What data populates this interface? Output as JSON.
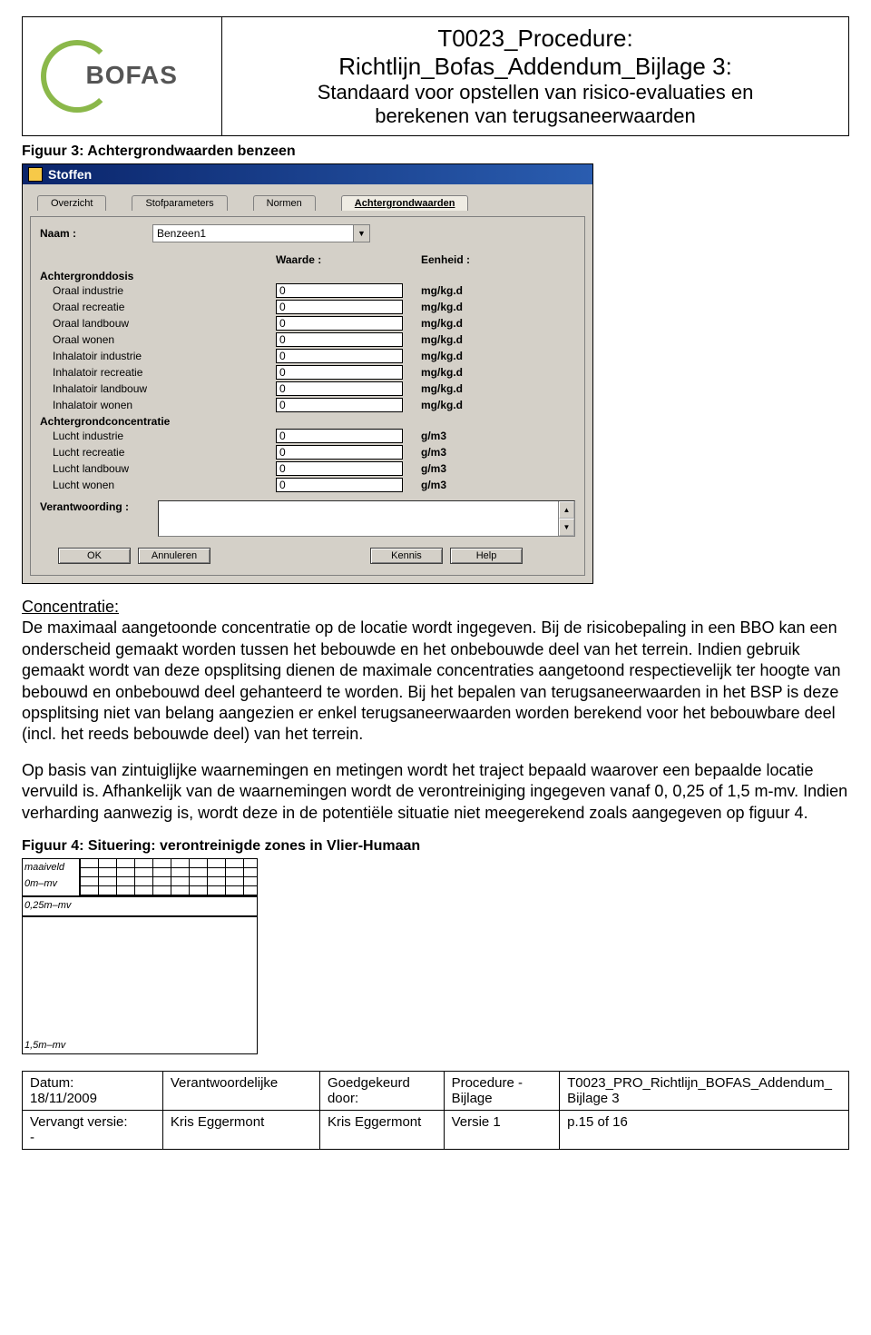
{
  "header": {
    "logo_text": "BOFAS",
    "title_l1": "T0023_Procedure:",
    "title_l2": "Richtlijn_Bofas_Addendum_Bijlage 3:",
    "title_l3": "Standaard voor opstellen van risico-evaluaties en",
    "title_l4": "berekenen van terugsaneerwaarden"
  },
  "fig3": {
    "caption": "Figuur 3: Achtergrondwaarden benzeen",
    "window_title": "Stoffen",
    "tabs": [
      "Overzicht",
      "Stofparameters",
      "Normen",
      "Achtergrondwaarden"
    ],
    "active_tab_index": 3,
    "naam_label": "Naam :",
    "naam_value": "Benzeen1",
    "head_waarde": "Waarde :",
    "head_eenheid": "Eenheid :",
    "group1": "Achtergronddosis",
    "rows1": [
      {
        "label": "Oraal industrie",
        "value": "0",
        "unit": "mg/kg.d"
      },
      {
        "label": "Oraal recreatie",
        "value": "0",
        "unit": "mg/kg.d"
      },
      {
        "label": "Oraal landbouw",
        "value": "0",
        "unit": "mg/kg.d"
      },
      {
        "label": "Oraal wonen",
        "value": "0",
        "unit": "mg/kg.d"
      },
      {
        "label": "Inhalatoir industrie",
        "value": "0",
        "unit": "mg/kg.d"
      },
      {
        "label": "Inhalatoir recreatie",
        "value": "0",
        "unit": "mg/kg.d"
      },
      {
        "label": "Inhalatoir landbouw",
        "value": "0",
        "unit": "mg/kg.d"
      },
      {
        "label": "Inhalatoir wonen",
        "value": "0",
        "unit": "mg/kg.d"
      }
    ],
    "group2": "Achtergrondconcentratie",
    "rows2": [
      {
        "label": "Lucht industrie",
        "value": "0",
        "unit": "g/m3"
      },
      {
        "label": "Lucht recreatie",
        "value": "0",
        "unit": "g/m3"
      },
      {
        "label": "Lucht landbouw",
        "value": "0",
        "unit": "g/m3"
      },
      {
        "label": "Lucht wonen",
        "value": "0",
        "unit": "g/m3"
      }
    ],
    "verantw_label": "Verantwoording :",
    "buttons": {
      "ok": "OK",
      "cancel": "Annuleren",
      "kennis": "Kennis",
      "help": "Help"
    }
  },
  "body": {
    "concentratie_head": "Concentratie:",
    "para1": "De maximaal aangetoonde concentratie op de locatie wordt ingegeven. Bij de risicobepaling in een BBO kan een onderscheid gemaakt worden tussen het bebouwde en het onbebouwde deel van het terrein. Indien gebruik gemaakt wordt van deze opsplitsing dienen de maximale concentraties aangetoond respectievelijk ter hoogte van bebouwd en onbebouwd deel gehanteerd te worden. Bij het bepalen van terugsaneerwaarden in het BSP is deze opsplitsing niet van belang aangezien er enkel terugsaneerwaarden worden berekend voor het bebouwbare deel (incl. het reeds bebouwde deel) van het terrein.",
    "para2": "Op basis van zintuiglijke waarnemingen en metingen wordt het traject bepaald waarover een bepaalde locatie vervuild is. Afhankelijk van de waarnemingen wordt de verontreiniging ingegeven vanaf 0, 0,25 of 1,5 m-mv. Indien verharding aanwezig is, wordt deze in de potentiële situatie niet meegerekend zoals aangegeven op figuur 4."
  },
  "fig4": {
    "caption": "Figuur 4: Situering: verontreinigde zones in Vlier-Humaan",
    "label_maaiveld": "maaiveld",
    "label_0m": "0m–mv",
    "label_025": "0,25m–mv",
    "label_15": "1,5m–mv"
  },
  "footer": {
    "r1c1a": "Datum:",
    "r1c1b": "18/11/2009",
    "r1c2": "Verantwoordelijke",
    "r1c3a": "Goedgekeurd",
    "r1c3b": "door:",
    "r1c4a": "Procedure -",
    "r1c4b": "Bijlage",
    "r1c5a": "T0023_PRO_Richtlijn_BOFAS_Addendum_",
    "r1c5b": "Bijlage 3",
    "r2c1a": "Vervangt versie:",
    "r2c1b": "-",
    "r2c2": "Kris Eggermont",
    "r2c3": "Kris Eggermont",
    "r2c4": "Versie 1",
    "r2c5": "p.15 of 16"
  }
}
